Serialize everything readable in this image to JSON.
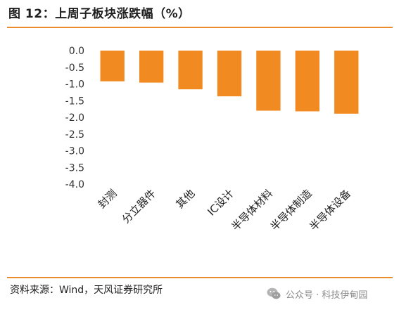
{
  "header": {
    "title": "图 12：上周子板块涨跌幅（%）"
  },
  "footer": {
    "source": "资料来源：Wind，天风证券研究所",
    "watermark": "公众号 · 科技伊甸园"
  },
  "colors": {
    "accent": "#ea8c2c",
    "bar": "#f28a22"
  },
  "chart_data": {
    "type": "bar",
    "title": "",
    "xlabel": "",
    "ylabel": "",
    "categories": [
      "封测",
      "分立器件",
      "其他",
      "IC设计",
      "半导体材料",
      "半导体制造",
      "半导体设备"
    ],
    "values": [
      -0.92,
      -0.96,
      -1.16,
      -1.37,
      -1.8,
      -1.82,
      -1.89
    ],
    "ylim": [
      -4.0,
      0.0
    ],
    "yticks": [
      "0.0",
      "-0.5",
      "-1.0",
      "-1.5",
      "-2.0",
      "-2.5",
      "-3.0",
      "-3.5",
      "-4.0"
    ],
    "grid": false,
    "legend": "none"
  }
}
